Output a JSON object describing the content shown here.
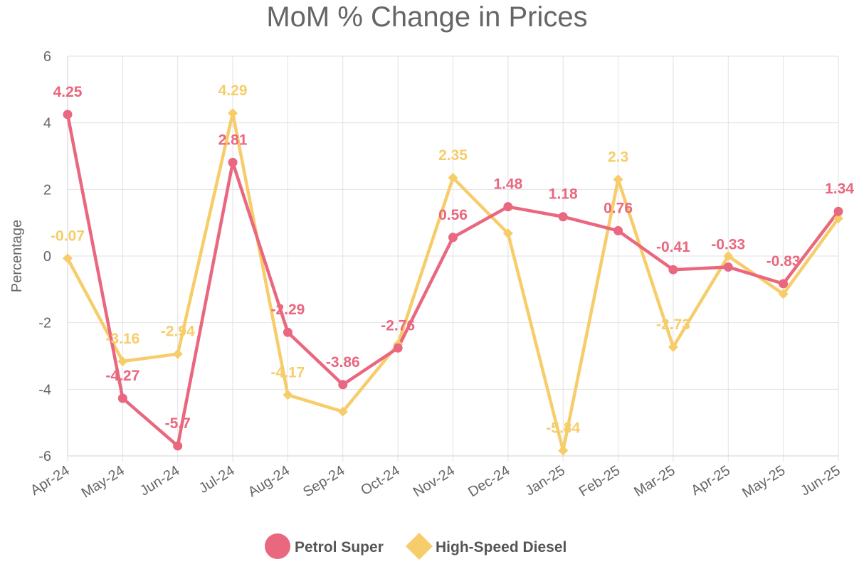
{
  "title": "MoM % Change in Prices",
  "chart_data": {
    "type": "line",
    "title": "MoM % Change in Prices",
    "xlabel": "",
    "ylabel": "Percentage",
    "ylim": [
      -6,
      6
    ],
    "yticks": [
      -6,
      -4,
      -2,
      0,
      2,
      4,
      6
    ],
    "grid": true,
    "legend_position": "bottom",
    "categories": [
      "Apr-24",
      "May-24",
      "Jun-24",
      "Jul-24",
      "Aug-24",
      "Sep-24",
      "Oct-24",
      "Nov-24",
      "Dec-24",
      "Jan-25",
      "Feb-25",
      "Mar-25",
      "Apr-25",
      "May-25",
      "Jun-25"
    ],
    "series": [
      {
        "name": "Petrol Super",
        "color": "#e9677f",
        "marker": "circle",
        "values": [
          4.25,
          -4.27,
          -5.7,
          2.81,
          -2.29,
          -3.86,
          -2.76,
          0.56,
          1.48,
          1.18,
          0.76,
          -0.41,
          -0.33,
          -0.83,
          1.34
        ],
        "labels": [
          "4.25",
          "-4.27",
          "-5.7",
          "2.81",
          "-2.29",
          "-3.86",
          "-2.76",
          "0.56",
          "1.48",
          "1.18",
          "0.76",
          "-0.41",
          "-0.33",
          "-0.83",
          "1.34"
        ]
      },
      {
        "name": "High-Speed Diesel",
        "color": "#f6cd6a",
        "marker": "diamond",
        "values": [
          -0.07,
          -3.16,
          -2.94,
          4.29,
          -4.17,
          -4.67,
          -2.65,
          2.35,
          0.68,
          -5.84,
          2.3,
          -2.73,
          0.0,
          -1.14,
          1.13
        ],
        "labels": [
          "-0.07",
          "-3.16",
          "-2.94",
          "4.29",
          "-4.17",
          "",
          "",
          "2.35",
          "",
          "-5.84",
          "2.3",
          "-2.73",
          "",
          "",
          ""
        ]
      }
    ]
  }
}
